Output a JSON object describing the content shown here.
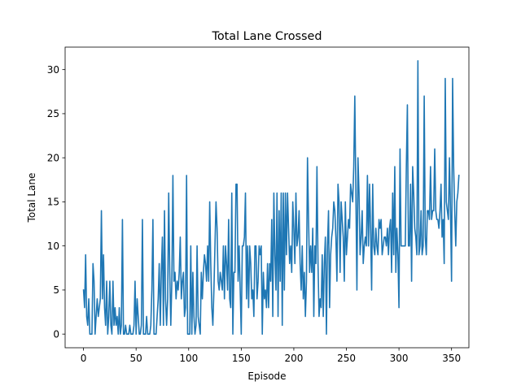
{
  "chart_data": {
    "type": "line",
    "title": "Total Lane Crossed",
    "xlabel": "Episode",
    "ylabel": "Total Lane",
    "xlim": [
      -17.5,
      366.5
    ],
    "ylim": [
      -1.55,
      32.55
    ],
    "xticks": [
      0,
      50,
      100,
      150,
      200,
      250,
      300,
      350
    ],
    "yticks": [
      0,
      5,
      10,
      15,
      20,
      25,
      30
    ],
    "grid": false,
    "legend": "none",
    "series": [
      {
        "color": "#1f77b4",
        "x_start": 0,
        "x_step": 1,
        "values": [
          5,
          3,
          9,
          2,
          1,
          4,
          0,
          0,
          0,
          8,
          6,
          0,
          2,
          4,
          2,
          3,
          4,
          14,
          4,
          9,
          3,
          1,
          6,
          0,
          2,
          6,
          1,
          0,
          6,
          1,
          3,
          1,
          2,
          0,
          3,
          0,
          1,
          13,
          0,
          0,
          1,
          0,
          0,
          0,
          1,
          0,
          0,
          0,
          1,
          6,
          0,
          4,
          2,
          0,
          0,
          1,
          13,
          0,
          0,
          0,
          2,
          0,
          0,
          0,
          1,
          5,
          13,
          0,
          0,
          0,
          2,
          4,
          8,
          1,
          7,
          11,
          1,
          14,
          4,
          1,
          4,
          16,
          7,
          1,
          6,
          18,
          6,
          7,
          4,
          6,
          5,
          7,
          11,
          4,
          6,
          7,
          2,
          3,
          18,
          0,
          0,
          0,
          10,
          0,
          7,
          2,
          0,
          1,
          10,
          2,
          1,
          0,
          7,
          4,
          7,
          9,
          8,
          6,
          10,
          6,
          15,
          8,
          3,
          1,
          5,
          10,
          15,
          12,
          6,
          5,
          7,
          6,
          5,
          10,
          4,
          10,
          8,
          5,
          13,
          4,
          3,
          16,
          0,
          7,
          7,
          17,
          17,
          6,
          10,
          5,
          0,
          10,
          10,
          11,
          16,
          4,
          10,
          3,
          10,
          8,
          4,
          5,
          2,
          10,
          10,
          4,
          6,
          10,
          9,
          10,
          0,
          7,
          4,
          5,
          3,
          8,
          3,
          8,
          6,
          13,
          2,
          16,
          9,
          5,
          16,
          2,
          14,
          6,
          16,
          1,
          16,
          5,
          16,
          9,
          16,
          12,
          8,
          10,
          7,
          15,
          12,
          8,
          16,
          10,
          11,
          14,
          8,
          5,
          10,
          4,
          7,
          2,
          6,
          20,
          13,
          7,
          10,
          7,
          12,
          2,
          10,
          8,
          19,
          8,
          2,
          4,
          3,
          9,
          2,
          8,
          11,
          0,
          10,
          14,
          3,
          9,
          11,
          12,
          15,
          14,
          11,
          6,
          17,
          15,
          7,
          15,
          13,
          11,
          6,
          15,
          9,
          11,
          13,
          12,
          17,
          16,
          15,
          19,
          27,
          16,
          5,
          20,
          16,
          9,
          11,
          14,
          8,
          10,
          11,
          10,
          18,
          10,
          17,
          12,
          5,
          17,
          10,
          9,
          12,
          10,
          9,
          13,
          12,
          13,
          9,
          10,
          11,
          11,
          10,
          12,
          9,
          12,
          13,
          7,
          16,
          9,
          19,
          7,
          12,
          9,
          3,
          21,
          10,
          10,
          10,
          10,
          10,
          19,
          26,
          10,
          10,
          17,
          6,
          19,
          16,
          12,
          11,
          9,
          31,
          9,
          10,
          14,
          9,
          10,
          27,
          11,
          9,
          14,
          14,
          13,
          19,
          13,
          14,
          14,
          21,
          14,
          13,
          13,
          12,
          14,
          17,
          11,
          13,
          8,
          29,
          15,
          14,
          13,
          20,
          14,
          6,
          29,
          19,
          14,
          10,
          15,
          16,
          18
        ]
      }
    ]
  }
}
